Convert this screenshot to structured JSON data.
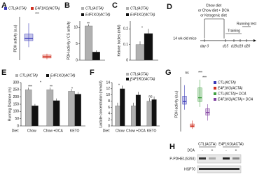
{
  "chart_data": [
    {
      "type": "box",
      "label": "A",
      "y_label": "PDH activity (a.u)",
      "ylim": [
        0,
        1
      ],
      "series": [
        {
          "name": "CTL(ACTA)",
          "color": "#3a3ab8",
          "values": [
            0.3,
            0.45,
            0.5,
            0.6,
            0.85
          ]
        },
        {
          "name": "E4F1KO(ACTA)",
          "color": "#d03020",
          "values": [
            0.02,
            0.05,
            0.08,
            0.12,
            0.15
          ]
        }
      ],
      "annotations": [
        "***"
      ]
    },
    {
      "type": "bar",
      "label": "B",
      "y_label": "PDH activity / CS activity",
      "ylim": [
        0,
        12
      ],
      "yticks": [
        0,
        5,
        10
      ],
      "series": [
        {
          "name": "CTL(ACTA)",
          "color": "#b0b0b0",
          "values": [
            10.5
          ],
          "errors": [
            0.5
          ]
        },
        {
          "name": "E4F1KO(ACTA)",
          "color": "#111111",
          "values": [
            2.5
          ],
          "errors": [
            0.5
          ]
        }
      ],
      "annotations": [
        "**"
      ]
    },
    {
      "type": "bar",
      "label": "C",
      "y_label": "Ketone bodies (mM)",
      "ylim": [
        0,
        0.25
      ],
      "yticks": [
        0,
        0.1,
        0.2
      ],
      "series": [
        {
          "name": "CTL(ACTA)",
          "color": "#b0b0b0",
          "values": [
            0.1
          ],
          "errors": [
            0.02
          ]
        },
        {
          "name": "E4F1KO(ACTA)",
          "color": "#111111",
          "values": [
            0.17
          ],
          "errors": [
            0.03
          ]
        }
      ],
      "annotations": [
        "*"
      ]
    },
    {
      "type": "bar",
      "label": "E",
      "y_label": "Running Distance (m)",
      "ylim": [
        0,
        300
      ],
      "yticks": [
        0,
        50,
        100,
        150,
        200,
        250,
        300
      ],
      "x_label": "Diet:",
      "categories": [
        "Chow",
        "Chow +DCA",
        "KETO"
      ],
      "series": [
        {
          "name": "CTL(ACTA)",
          "color": "#b0b0b0",
          "values": [
            250,
            250,
            240
          ],
          "errors": [
            15,
            15,
            15
          ]
        },
        {
          "name": "E4F1KO(ACTA)",
          "color": "#111111",
          "values": [
            140,
            175,
            220
          ],
          "errors": [
            12,
            15,
            15
          ]
        }
      ],
      "annotations": [
        "***",
        "**",
        "*",
        "*",
        "*"
      ]
    },
    {
      "type": "bar",
      "label": "F",
      "y_label": "Lactate concentration (mmol/l)",
      "ylim": [
        0,
        14
      ],
      "yticks": [
        0,
        2,
        4,
        6,
        8,
        10,
        12,
        14
      ],
      "x_label": "Diet:",
      "categories": [
        "Chow",
        "Chow +DCA",
        "KETO"
      ],
      "series": [
        {
          "name": "CTL(ACTA)",
          "color": "#b0b0b0",
          "values": [
            6.5,
            6.5,
            8
          ],
          "errors": [
            1,
            1,
            1
          ]
        },
        {
          "name": "E4F1KO(ACTA)",
          "color": "#111111",
          "values": [
            12,
            10,
            8.5
          ],
          "errors": [
            1,
            1,
            1
          ]
        }
      ],
      "annotations": [
        "*",
        "*",
        "ns",
        "*"
      ]
    },
    {
      "type": "box",
      "label": "G",
      "y_label": "PDH activity (a.u)",
      "ylim": [
        0,
        1
      ],
      "series": [
        {
          "name": "CTL(ACTA)",
          "color": "#3a3ab8",
          "values": [
            0.4,
            0.5,
            0.55,
            0.65,
            0.85
          ]
        },
        {
          "name": "E4F1KO(ACTA)",
          "color": "#d03020",
          "values": [
            0.05,
            0.08,
            0.1,
            0.14,
            0.2
          ]
        },
        {
          "name": "CTL(ACTA)+ DCA",
          "color": "#40a040",
          "values": [
            0.45,
            0.55,
            0.62,
            0.8,
            0.95
          ]
        },
        {
          "name": "E4F1KO(ACTA)+ DCA",
          "color": "#8040a0",
          "values": [
            0.2,
            0.3,
            0.35,
            0.42,
            0.5
          ]
        }
      ],
      "annotations": [
        "ns",
        "***",
        "***"
      ]
    }
  ],
  "timeline": {
    "label": "D",
    "diets": [
      "Chow diet",
      "or Chow diet + DCA",
      "or Ketogenic diet"
    ],
    "training": "Training",
    "test": "Running test",
    "mice": "14 wk-old mice",
    "days": [
      "day 0",
      "d15",
      "d18",
      "d19",
      "d20"
    ]
  },
  "blot": {
    "label": "H",
    "groups": [
      "CTL(ACTA)",
      "E4F1KO(ACTA)"
    ],
    "treatment": "DCA",
    "signs": [
      "-",
      "+",
      "-",
      "+"
    ],
    "bands": [
      "P-PDHE1(S293)",
      "HSP70"
    ]
  }
}
